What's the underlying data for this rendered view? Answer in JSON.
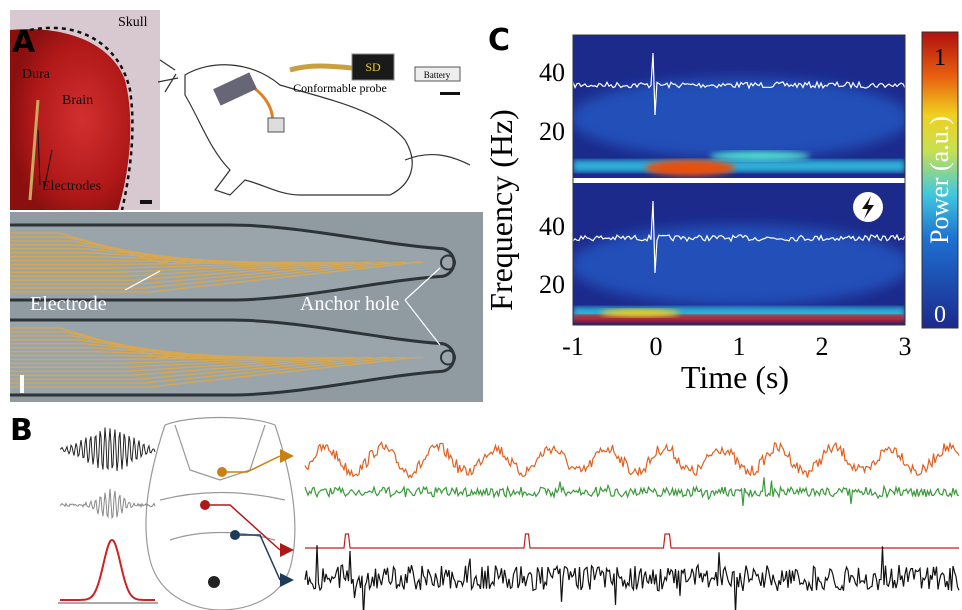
{
  "panels": {
    "a": {
      "label": "A",
      "photo": {
        "skull": "Skull",
        "dura": "Dura",
        "brain": "Brain",
        "electrodes": "Electrodes"
      },
      "device": {
        "sd": "SD",
        "battery": "Battery",
        "probe": "Conformable probe"
      },
      "micrograph": {
        "electrode": "Electrode",
        "anchor_hole": "Anchor hole"
      }
    },
    "b": {
      "label": "B"
    },
    "c": {
      "label": "C",
      "y_axis_label": "Frequency (Hz)",
      "top_yticks": [
        40,
        20
      ],
      "bottom_yticks": [
        40,
        20
      ],
      "xticks": [
        -1,
        0,
        1,
        2,
        3
      ],
      "x_axis_label": "Time (s)",
      "colorbar_label": "Power (a.u.)",
      "colorbar_ticks": [
        1,
        0
      ]
    }
  }
}
